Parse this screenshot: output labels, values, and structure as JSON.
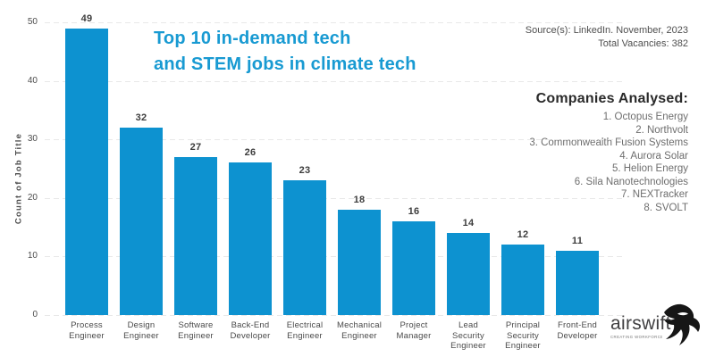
{
  "title": {
    "line1": "Top 10 in-demand tech",
    "line2": "and STEM jobs in climate tech"
  },
  "source": {
    "line1": "Source(s): LinkedIn. November, 2023",
    "line2": "Total Vacancies: 382"
  },
  "companies": {
    "heading": "Companies Analysed:",
    "items": [
      "1. Octopus Energy",
      "2. Northvolt",
      "3. Commonwealth Fusion Systems",
      "4. Aurora Solar",
      "5. Helion Energy",
      "6. Sila Nanotechnologies",
      "7. NEXTracker",
      "8. SVOLT"
    ]
  },
  "logo": {
    "name": "airswift",
    "tagline": "CREATING WORKFORCE SOLUTIONS"
  },
  "colors": {
    "bar": "#0d92d0",
    "title": "#189ad2",
    "logo_bird": "#161616"
  },
  "chart_data": {
    "type": "bar",
    "categories": [
      "Process Engineer",
      "Design Engineer",
      "Software Engineer",
      "Back-End Developer",
      "Electrical Engineer",
      "Mechanical Engineer",
      "Project Manager",
      "Lead Security Engineer",
      "Principal Security Engineer",
      "Front-End Developer"
    ],
    "values": [
      49,
      32,
      27,
      26,
      23,
      18,
      16,
      14,
      12,
      11
    ],
    "title": "Top 10 in-demand tech and STEM jobs in climate tech",
    "xlabel": "",
    "ylabel": "Count of Job Title",
    "ylim": [
      0,
      50
    ],
    "yticks": [
      0,
      10,
      20,
      30,
      40,
      50
    ],
    "grid": "horizontal-dashed",
    "legend": "none",
    "value_labels": "above-bars"
  }
}
